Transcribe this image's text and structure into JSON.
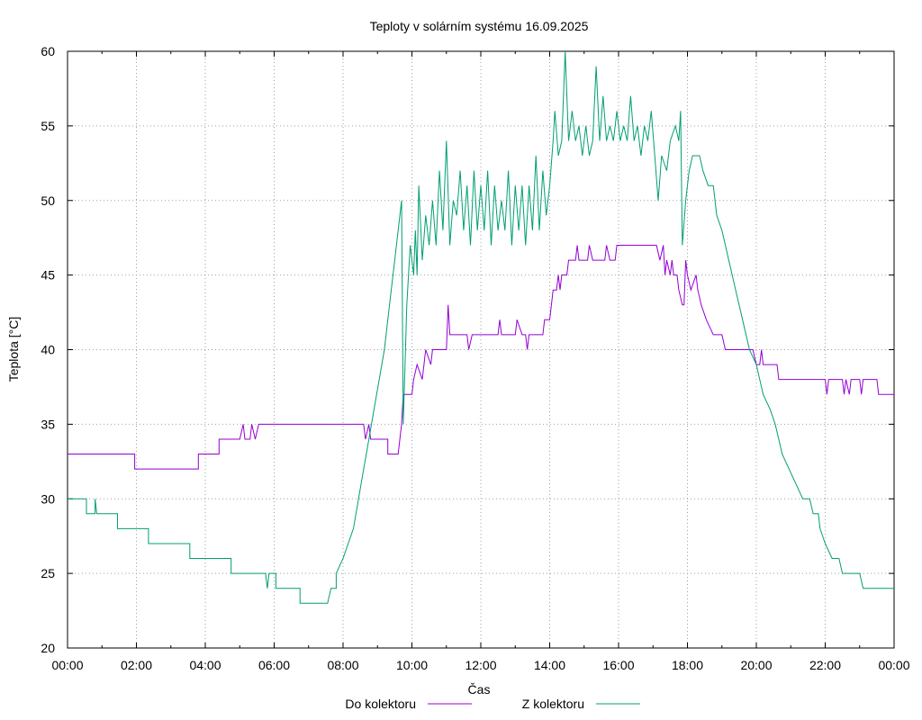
{
  "chart_data": {
    "type": "line",
    "title": "Teploty v solárním systému 16.09.2025",
    "xlabel": "Čas",
    "ylabel": "Teplota [°C]",
    "xlim": [
      0,
      24
    ],
    "ylim": [
      20,
      60
    ],
    "x_ticks": [
      "00:00",
      "02:00",
      "04:00",
      "06:00",
      "08:00",
      "10:00",
      "12:00",
      "14:00",
      "16:00",
      "18:00",
      "20:00",
      "22:00",
      "00:00"
    ],
    "y_ticks": [
      "20",
      "25",
      "30",
      "35",
      "40",
      "45",
      "50",
      "55",
      "60"
    ],
    "legend_position": "bottom",
    "series": [
      {
        "name": "Do kolektoru",
        "color": "#9400d3",
        "points": [
          [
            0,
            33
          ],
          [
            1.95,
            33
          ],
          [
            1.95,
            32
          ],
          [
            3.8,
            32
          ],
          [
            3.8,
            33
          ],
          [
            4.4,
            33
          ],
          [
            4.4,
            34
          ],
          [
            5.0,
            34
          ],
          [
            5.1,
            35
          ],
          [
            5.15,
            34
          ],
          [
            5.3,
            34
          ],
          [
            5.35,
            35
          ],
          [
            5.45,
            34
          ],
          [
            5.55,
            35
          ],
          [
            8.6,
            35
          ],
          [
            8.65,
            34
          ],
          [
            8.75,
            35
          ],
          [
            8.8,
            34
          ],
          [
            9.3,
            34
          ],
          [
            9.3,
            33
          ],
          [
            9.6,
            33
          ],
          [
            9.7,
            35
          ],
          [
            9.75,
            37
          ],
          [
            10.0,
            37
          ],
          [
            10.05,
            38
          ],
          [
            10.15,
            39
          ],
          [
            10.3,
            38
          ],
          [
            10.35,
            39
          ],
          [
            10.4,
            40
          ],
          [
            10.55,
            39
          ],
          [
            10.6,
            40
          ],
          [
            11.0,
            40
          ],
          [
            11.05,
            43
          ],
          [
            11.1,
            41
          ],
          [
            11.6,
            41
          ],
          [
            11.65,
            40
          ],
          [
            11.75,
            41
          ],
          [
            12.5,
            41
          ],
          [
            12.55,
            42
          ],
          [
            12.6,
            41
          ],
          [
            13.0,
            41
          ],
          [
            13.05,
            42
          ],
          [
            13.2,
            41
          ],
          [
            13.3,
            41
          ],
          [
            13.35,
            40
          ],
          [
            13.4,
            41
          ],
          [
            13.8,
            41
          ],
          [
            13.85,
            42
          ],
          [
            14.0,
            42
          ],
          [
            14.05,
            43
          ],
          [
            14.1,
            44
          ],
          [
            14.2,
            44
          ],
          [
            14.25,
            45
          ],
          [
            14.3,
            44
          ],
          [
            14.35,
            45
          ],
          [
            14.5,
            45
          ],
          [
            14.55,
            46
          ],
          [
            14.75,
            46
          ],
          [
            14.8,
            47
          ],
          [
            14.85,
            46
          ],
          [
            15.1,
            46
          ],
          [
            15.15,
            47
          ],
          [
            15.25,
            46
          ],
          [
            15.6,
            46
          ],
          [
            15.65,
            47
          ],
          [
            15.75,
            46
          ],
          [
            15.9,
            46
          ],
          [
            15.95,
            47
          ],
          [
            17.1,
            47
          ],
          [
            17.2,
            46
          ],
          [
            17.3,
            47
          ],
          [
            17.35,
            45
          ],
          [
            17.4,
            46
          ],
          [
            17.5,
            45
          ],
          [
            17.55,
            46
          ],
          [
            17.6,
            45
          ],
          [
            17.7,
            45
          ],
          [
            17.75,
            44
          ],
          [
            17.85,
            43
          ],
          [
            17.9,
            43
          ],
          [
            17.95,
            46
          ],
          [
            18.0,
            45
          ],
          [
            18.1,
            44
          ],
          [
            18.25,
            45
          ],
          [
            18.3,
            44
          ],
          [
            18.4,
            43
          ],
          [
            18.55,
            42
          ],
          [
            18.75,
            41
          ],
          [
            19.0,
            41
          ],
          [
            19.1,
            40
          ],
          [
            19.9,
            40
          ],
          [
            20.0,
            39
          ],
          [
            20.1,
            39
          ],
          [
            20.15,
            40
          ],
          [
            20.2,
            39
          ],
          [
            20.6,
            39
          ],
          [
            20.65,
            38
          ],
          [
            22.0,
            38
          ],
          [
            22.05,
            37
          ],
          [
            22.1,
            38
          ],
          [
            22.5,
            38
          ],
          [
            22.55,
            37
          ],
          [
            22.6,
            38
          ],
          [
            22.7,
            37
          ],
          [
            22.75,
            38
          ],
          [
            23.0,
            38
          ],
          [
            23.05,
            37
          ],
          [
            23.1,
            38
          ],
          [
            23.5,
            38
          ],
          [
            23.55,
            37
          ],
          [
            24.0,
            37
          ]
        ]
      },
      {
        "name": "Z kolektoru",
        "color": "#009e73",
        "points": [
          [
            0,
            30
          ],
          [
            0.55,
            30
          ],
          [
            0.55,
            29
          ],
          [
            0.8,
            29
          ],
          [
            0.8,
            30
          ],
          [
            0.85,
            29
          ],
          [
            1.45,
            29
          ],
          [
            1.45,
            28
          ],
          [
            2.35,
            28
          ],
          [
            2.35,
            27
          ],
          [
            3.55,
            27
          ],
          [
            3.55,
            26
          ],
          [
            4.75,
            26
          ],
          [
            4.75,
            25
          ],
          [
            5.75,
            25
          ],
          [
            5.8,
            24
          ],
          [
            5.85,
            25
          ],
          [
            6.05,
            25
          ],
          [
            6.05,
            24
          ],
          [
            6.75,
            24
          ],
          [
            6.75,
            23
          ],
          [
            7.55,
            23
          ],
          [
            7.65,
            24
          ],
          [
            7.8,
            24
          ],
          [
            7.8,
            25
          ],
          [
            8.0,
            26
          ],
          [
            8.15,
            27
          ],
          [
            8.3,
            28
          ],
          [
            8.45,
            30
          ],
          [
            8.6,
            32
          ],
          [
            8.75,
            34
          ],
          [
            8.9,
            36
          ],
          [
            9.05,
            38
          ],
          [
            9.2,
            40
          ],
          [
            9.35,
            43
          ],
          [
            9.5,
            46
          ],
          [
            9.6,
            48
          ],
          [
            9.7,
            50
          ],
          [
            9.75,
            35
          ],
          [
            9.85,
            43
          ],
          [
            9.95,
            47
          ],
          [
            10.05,
            45
          ],
          [
            10.1,
            48
          ],
          [
            10.15,
            45
          ],
          [
            10.2,
            51
          ],
          [
            10.3,
            46
          ],
          [
            10.4,
            49
          ],
          [
            10.5,
            47
          ],
          [
            10.6,
            50
          ],
          [
            10.7,
            47
          ],
          [
            10.8,
            52
          ],
          [
            10.9,
            48
          ],
          [
            11.0,
            54
          ],
          [
            11.1,
            47
          ],
          [
            11.2,
            50
          ],
          [
            11.3,
            49
          ],
          [
            11.4,
            52
          ],
          [
            11.5,
            48
          ],
          [
            11.6,
            51
          ],
          [
            11.7,
            47
          ],
          [
            11.8,
            52
          ],
          [
            11.9,
            48
          ],
          [
            12.0,
            51
          ],
          [
            12.1,
            48
          ],
          [
            12.2,
            52
          ],
          [
            12.3,
            47
          ],
          [
            12.4,
            51
          ],
          [
            12.5,
            48
          ],
          [
            12.6,
            50
          ],
          [
            12.7,
            48
          ],
          [
            12.8,
            52
          ],
          [
            12.9,
            47
          ],
          [
            13.0,
            51
          ],
          [
            13.1,
            48
          ],
          [
            13.2,
            51
          ],
          [
            13.3,
            47
          ],
          [
            13.4,
            51
          ],
          [
            13.5,
            48
          ],
          [
            13.6,
            53
          ],
          [
            13.7,
            48
          ],
          [
            13.8,
            52
          ],
          [
            13.9,
            49
          ],
          [
            14.0,
            51
          ],
          [
            14.1,
            54
          ],
          [
            14.15,
            56
          ],
          [
            14.25,
            53
          ],
          [
            14.35,
            54
          ],
          [
            14.45,
            60
          ],
          [
            14.55,
            54
          ],
          [
            14.65,
            56
          ],
          [
            14.75,
            54
          ],
          [
            14.85,
            55
          ],
          [
            14.95,
            53
          ],
          [
            15.05,
            55
          ],
          [
            15.15,
            53
          ],
          [
            15.25,
            54
          ],
          [
            15.35,
            59
          ],
          [
            15.45,
            54
          ],
          [
            15.55,
            57
          ],
          [
            15.65,
            54
          ],
          [
            15.75,
            55
          ],
          [
            15.85,
            54
          ],
          [
            15.95,
            56
          ],
          [
            16.05,
            54
          ],
          [
            16.15,
            55
          ],
          [
            16.25,
            54
          ],
          [
            16.35,
            57
          ],
          [
            16.45,
            54
          ],
          [
            16.55,
            55
          ],
          [
            16.65,
            53
          ],
          [
            16.75,
            55
          ],
          [
            16.85,
            54
          ],
          [
            16.95,
            56
          ],
          [
            17.05,
            53
          ],
          [
            17.15,
            50
          ],
          [
            17.25,
            53
          ],
          [
            17.4,
            52
          ],
          [
            17.5,
            54
          ],
          [
            17.65,
            55
          ],
          [
            17.75,
            54
          ],
          [
            17.8,
            56
          ],
          [
            17.85,
            47
          ],
          [
            17.95,
            50
          ],
          [
            18.05,
            52
          ],
          [
            18.15,
            53
          ],
          [
            18.35,
            53
          ],
          [
            18.45,
            52
          ],
          [
            18.6,
            51
          ],
          [
            18.75,
            51
          ],
          [
            18.85,
            49
          ],
          [
            19.0,
            48
          ],
          [
            19.2,
            46
          ],
          [
            19.4,
            44
          ],
          [
            19.6,
            42
          ],
          [
            19.8,
            40
          ],
          [
            20.0,
            39
          ],
          [
            20.2,
            37
          ],
          [
            20.4,
            36
          ],
          [
            20.55,
            35
          ],
          [
            20.75,
            33
          ],
          [
            20.95,
            32
          ],
          [
            21.15,
            31
          ],
          [
            21.35,
            30
          ],
          [
            21.55,
            30
          ],
          [
            21.65,
            29
          ],
          [
            21.8,
            29
          ],
          [
            21.85,
            28
          ],
          [
            22.0,
            27
          ],
          [
            22.2,
            26
          ],
          [
            22.4,
            26
          ],
          [
            22.5,
            25
          ],
          [
            23.0,
            25
          ],
          [
            23.1,
            24
          ],
          [
            23.4,
            24
          ],
          [
            24.0,
            24
          ]
        ]
      }
    ]
  }
}
